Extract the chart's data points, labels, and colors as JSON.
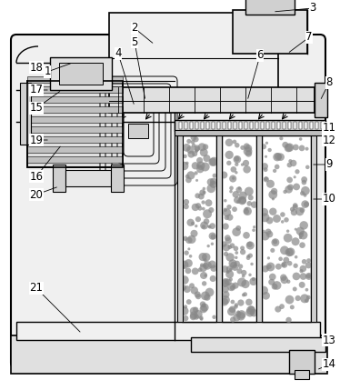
{
  "bg": "#ffffff",
  "lc": "#000000",
  "gray1": "#f0f0f0",
  "gray2": "#e0e0e0",
  "gray3": "#d0d0d0",
  "gray4": "#c0c0c0",
  "gray5": "#a0a0a0",
  "figsize": [
    3.74,
    4.29
  ],
  "dpi": 100
}
